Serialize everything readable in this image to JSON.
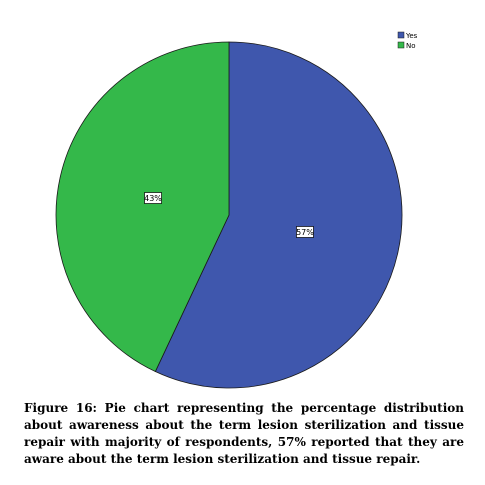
{
  "chart_data": {
    "type": "pie",
    "categories": [
      "Yes",
      "No"
    ],
    "values": [
      57,
      43
    ],
    "data_labels": [
      "57%",
      "43%"
    ],
    "colors": [
      "#3f57ad",
      "#34b84a"
    ],
    "legend_position": "top-right"
  },
  "caption": "Figure 16: Pie chart representing the percentage distribution about awareness about the term lesion sterilization and tissue repair with majority of respondents, 57% reported that they are aware about the term lesion sterilization and tissue repair."
}
